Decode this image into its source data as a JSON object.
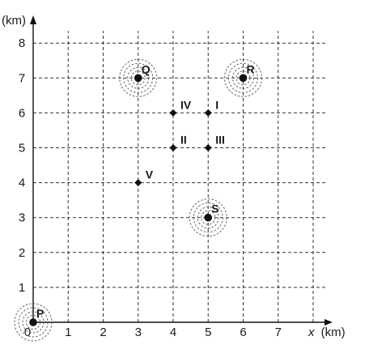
{
  "chart_data": {
    "type": "scatter",
    "xlabel": {
      "var": "x",
      "unit": "(km)"
    },
    "ylabel": "(km)",
    "xlim": [
      0,
      8
    ],
    "ylim": [
      0,
      8
    ],
    "grid": true,
    "x_ticks": [
      "0",
      "1",
      "2",
      "3",
      "4",
      "5",
      "6",
      "7"
    ],
    "y_ticks": [
      "1",
      "2",
      "3",
      "4",
      "5",
      "6",
      "7",
      "8"
    ],
    "stations": [
      {
        "label": "P",
        "x": 0,
        "y": 0
      },
      {
        "label": "Q",
        "x": 3,
        "y": 7
      },
      {
        "label": "R",
        "x": 6,
        "y": 7
      },
      {
        "label": "S",
        "x": 5,
        "y": 3
      }
    ],
    "points": [
      {
        "label": "I",
        "x": 5,
        "y": 6
      },
      {
        "label": "II",
        "x": 4,
        "y": 5
      },
      {
        "label": "III",
        "x": 5,
        "y": 5
      },
      {
        "label": "IV",
        "x": 4,
        "y": 6
      },
      {
        "label": "V",
        "x": 3,
        "y": 4
      }
    ]
  }
}
